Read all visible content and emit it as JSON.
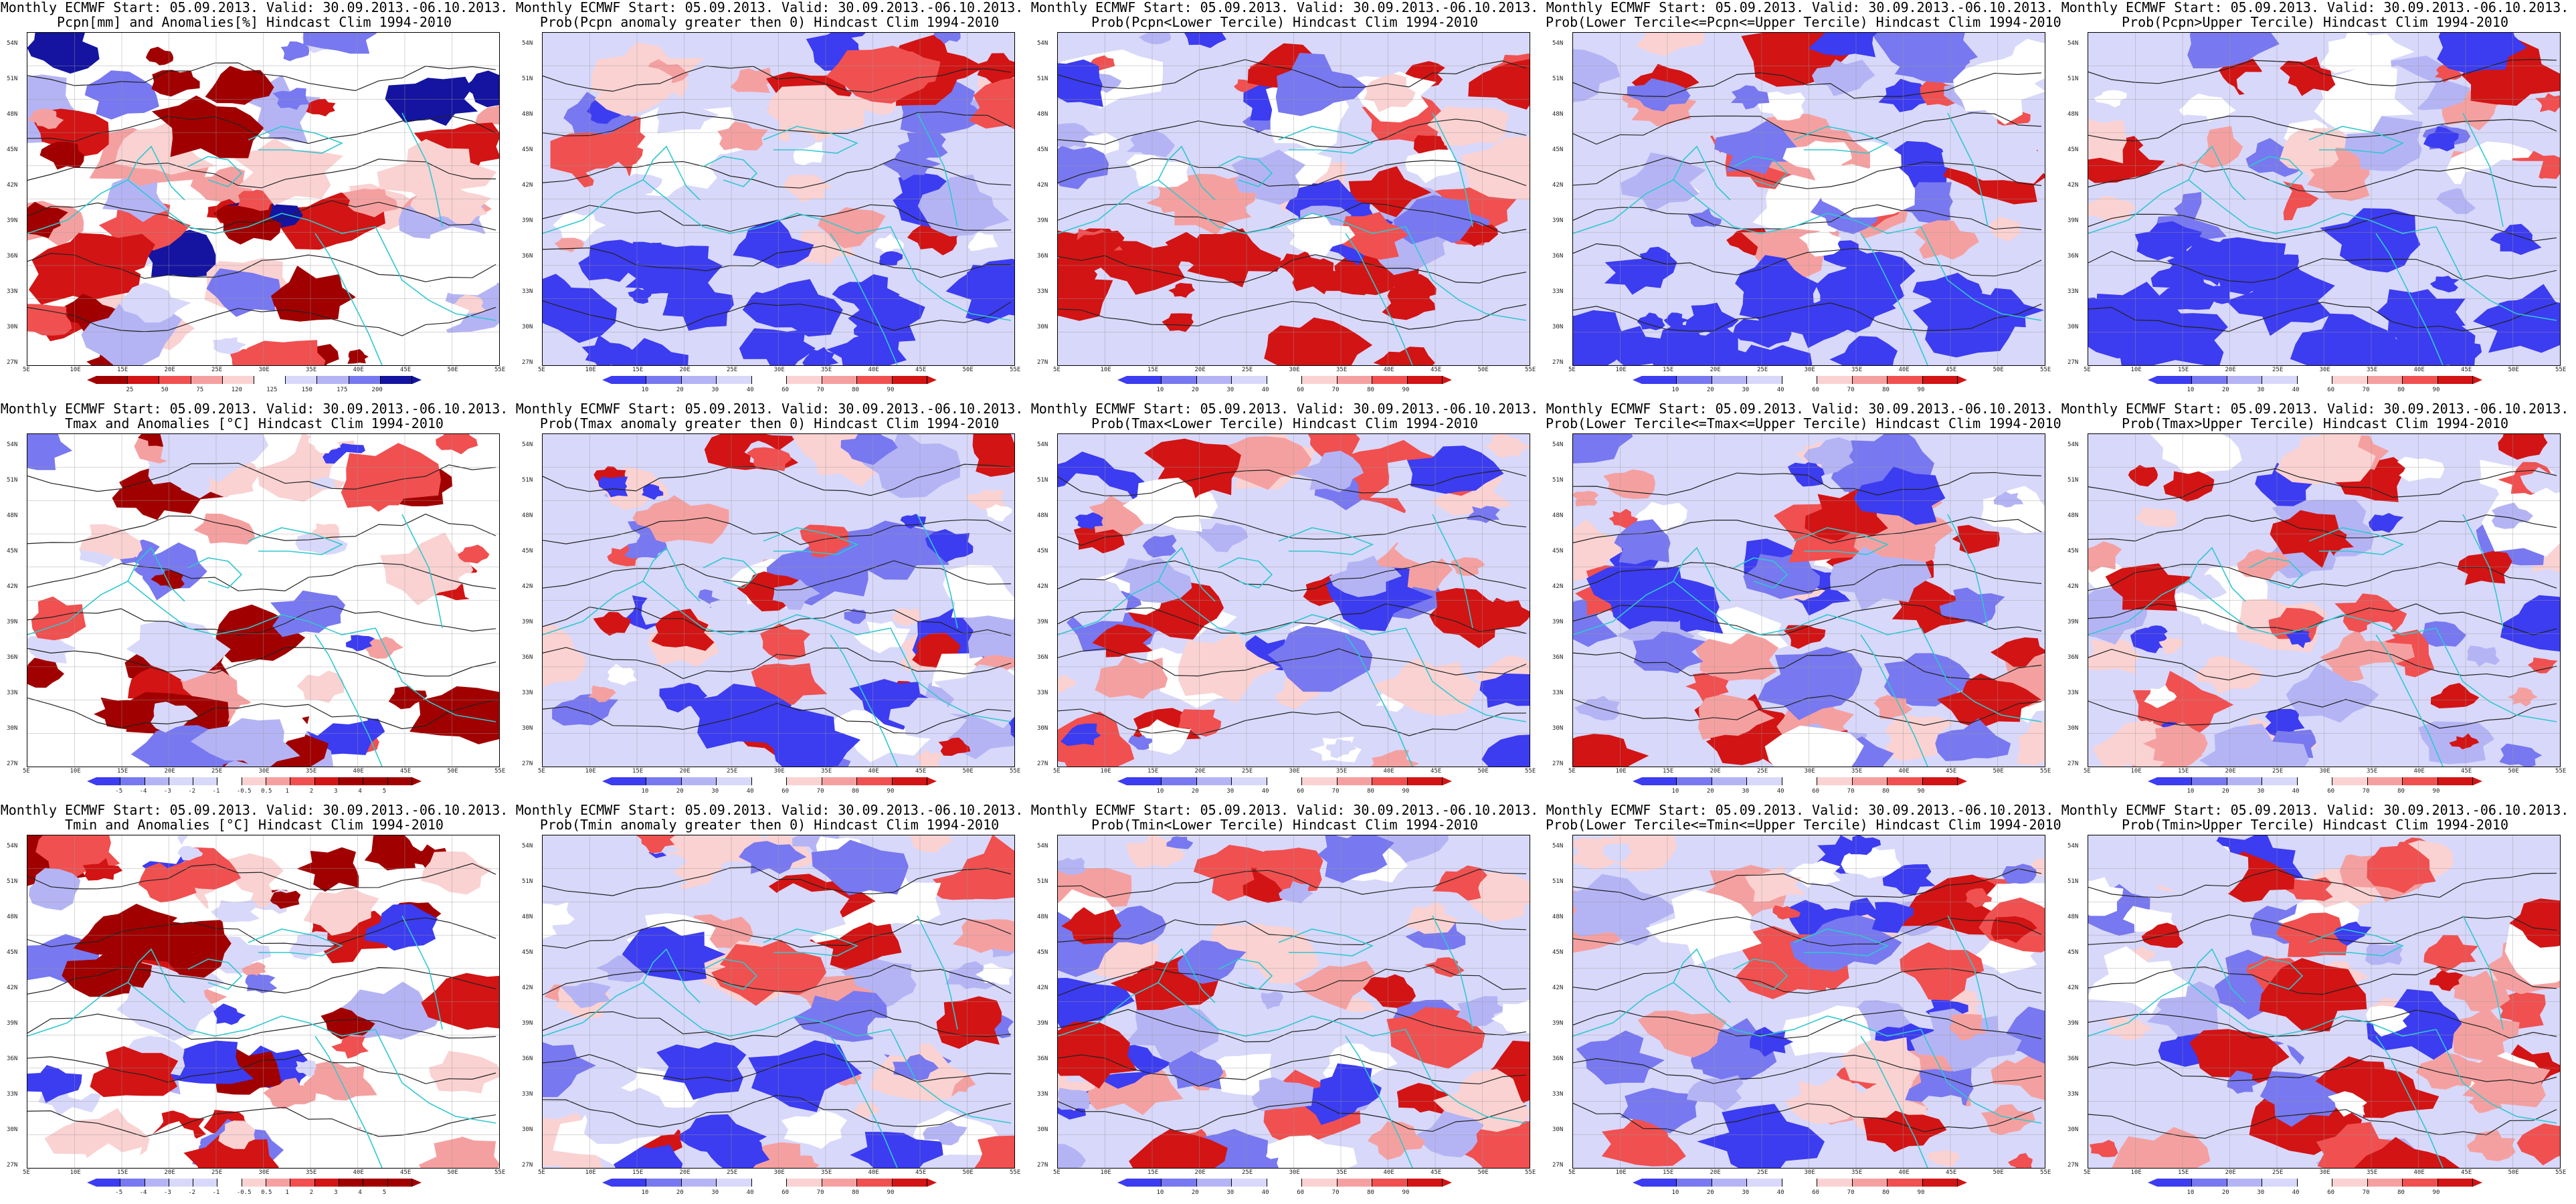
{
  "figure": {
    "rows": [
      [
        {
          "title1": "Monthly ECMWF Start: 05.09.2013. Valid: 30.09.2013.-06.10.2013.",
          "title2": "Pcpn[mm] and Anomalies[%] Hindcast Clim 1994-2010",
          "palette": "precip",
          "scale": [
            "25",
            "50",
            "75",
            "120",
            "125",
            "150",
            "175",
            "200"
          ]
        },
        {
          "title1": "Monthly ECMWF Start: 05.09.2013. Valid: 30.09.2013.-06.10.2013.",
          "title2": "Prob(Pcpn anomaly greater then 0) Hindcast Clim 1994-2010",
          "palette": "prob",
          "scale": [
            "10",
            "20",
            "30",
            "40",
            "60",
            "70",
            "80",
            "90"
          ]
        },
        {
          "title1": "Monthly ECMWF Start: 05.09.2013. Valid: 30.09.2013.-06.10.2013.",
          "title2": "Prob(Pcpn<Lower Tercile) Hindcast Clim 1994-2010",
          "palette": "prob",
          "scale": [
            "10",
            "20",
            "30",
            "40",
            "60",
            "70",
            "80",
            "90"
          ]
        },
        {
          "title1": "Monthly ECMWF Start: 05.09.2013. Valid: 30.09.2013.-06.10.2013.",
          "title2": "Prob(Lower Tercile<=Pcpn<=Upper Tercile) Hindcast Clim 1994-2010",
          "palette": "prob",
          "scale": [
            "10",
            "20",
            "30",
            "40",
            "60",
            "70",
            "80",
            "90"
          ]
        },
        {
          "title1": "Monthly ECMWF Start: 05.09.2013. Valid: 30.09.2013.-06.10.2013.",
          "title2": "Prob(Pcpn>Upper Tercile) Hindcast Clim 1994-2010",
          "palette": "prob",
          "scale": [
            "10",
            "20",
            "30",
            "40",
            "60",
            "70",
            "80",
            "90"
          ]
        }
      ],
      [
        {
          "title1": "Monthly ECMWF Start: 05.09.2013. Valid: 30.09.2013.-06.10.2013.",
          "title2": "Tmax and Anomalies [°C] Hindcast Clim 1994-2010",
          "palette": "anom",
          "scale": [
            "-5",
            "-4",
            "-3",
            "-2",
            "-1",
            "-0.5",
            "0.5",
            "1",
            "2",
            "3",
            "4",
            "5"
          ]
        },
        {
          "title1": "Monthly ECMWF Start: 05.09.2013. Valid: 30.09.2013.-06.10.2013.",
          "title2": "Prob(Tmax anomaly greater then 0) Hindcast Clim 1994-2010",
          "palette": "prob",
          "scale": [
            "10",
            "20",
            "30",
            "40",
            "60",
            "70",
            "80",
            "90"
          ]
        },
        {
          "title1": "Monthly ECMWF Start: 05.09.2013. Valid: 30.09.2013.-06.10.2013.",
          "title2": "Prob(Tmax<Lower Tercile) Hindcast Clim 1994-2010",
          "palette": "prob",
          "scale": [
            "10",
            "20",
            "30",
            "40",
            "60",
            "70",
            "80",
            "90"
          ]
        },
        {
          "title1": "Monthly ECMWF Start: 05.09.2013. Valid: 30.09.2013.-06.10.2013.",
          "title2": "Prob(Lower Tercile<=Tmax<=Upper Tercile) Hindcast Clim 1994-2010",
          "palette": "prob",
          "scale": [
            "10",
            "20",
            "30",
            "40",
            "60",
            "70",
            "80",
            "90"
          ]
        },
        {
          "title1": "Monthly ECMWF Start: 05.09.2013. Valid: 30.09.2013.-06.10.2013.",
          "title2": "Prob(Tmax>Upper Tercile) Hindcast Clim 1994-2010",
          "palette": "prob",
          "scale": [
            "10",
            "20",
            "30",
            "40",
            "60",
            "70",
            "80",
            "90"
          ]
        }
      ],
      [
        {
          "title1": "Monthly ECMWF Start: 05.09.2013. Valid: 30.09.2013.-06.10.2013.",
          "title2": "Tmin and Anomalies [°C] Hindcast Clim 1994-2010",
          "palette": "anom",
          "scale": [
            "-5",
            "-4",
            "-3",
            "-2",
            "-1",
            "-0.5",
            "0.5",
            "1",
            "2",
            "3",
            "4",
            "5"
          ]
        },
        {
          "title1": "Monthly ECMWF Start: 05.09.2013. Valid: 30.09.2013.-06.10.2013.",
          "title2": "Prob(Tmin anomaly greater then 0) Hindcast Clim 1994-2010",
          "palette": "prob",
          "scale": [
            "10",
            "20",
            "30",
            "40",
            "60",
            "70",
            "80",
            "90"
          ]
        },
        {
          "title1": "Monthly ECMWF Start: 05.09.2013. Valid: 30.09.2013.-06.10.2013.",
          "title2": "Prob(Tmin<Lower Tercile) Hindcast Clim 1994-2010",
          "palette": "prob",
          "scale": [
            "10",
            "20",
            "30",
            "40",
            "60",
            "70",
            "80",
            "90"
          ]
        },
        {
          "title1": "Monthly ECMWF Start: 05.09.2013. Valid: 30.09.2013.-06.10.2013.",
          "title2": "Prob(Lower Tercile<=Tmin<=Upper Tercile) Hindcast Clim 1994-2010",
          "palette": "prob",
          "scale": [
            "10",
            "20",
            "30",
            "40",
            "60",
            "70",
            "80",
            "90"
          ]
        },
        {
          "title1": "Monthly ECMWF Start: 05.09.2013. Valid: 30.09.2013.-06.10.2013.",
          "title2": "Prob(Tmin>Upper Tercile) Hindcast Clim 1994-2010",
          "palette": "prob",
          "scale": [
            "10",
            "20",
            "30",
            "40",
            "60",
            "70",
            "80",
            "90"
          ]
        }
      ]
    ],
    "lat_labels": [
      "54N",
      "51N",
      "48N",
      "45N",
      "42N",
      "39N",
      "36N",
      "33N",
      "30N",
      "27N"
    ],
    "lon_labels": [
      "5E",
      "10E",
      "15E",
      "20E",
      "25E",
      "30E",
      "35E",
      "40E",
      "45E",
      "50E",
      "55E"
    ],
    "colors": {
      "deep_blue": "#1414a0",
      "blue": "#3c3cf0",
      "mid_blue": "#7878f0",
      "light_blue": "#b4b4f5",
      "pale_blue": "#d8d8fa",
      "white": "#ffffff",
      "pale_red": "#fad2d2",
      "light_red": "#f5a0a0",
      "mid_red": "#f05050",
      "red": "#d21414",
      "dark_red": "#a00000",
      "coast": "#30c8d0"
    }
  }
}
